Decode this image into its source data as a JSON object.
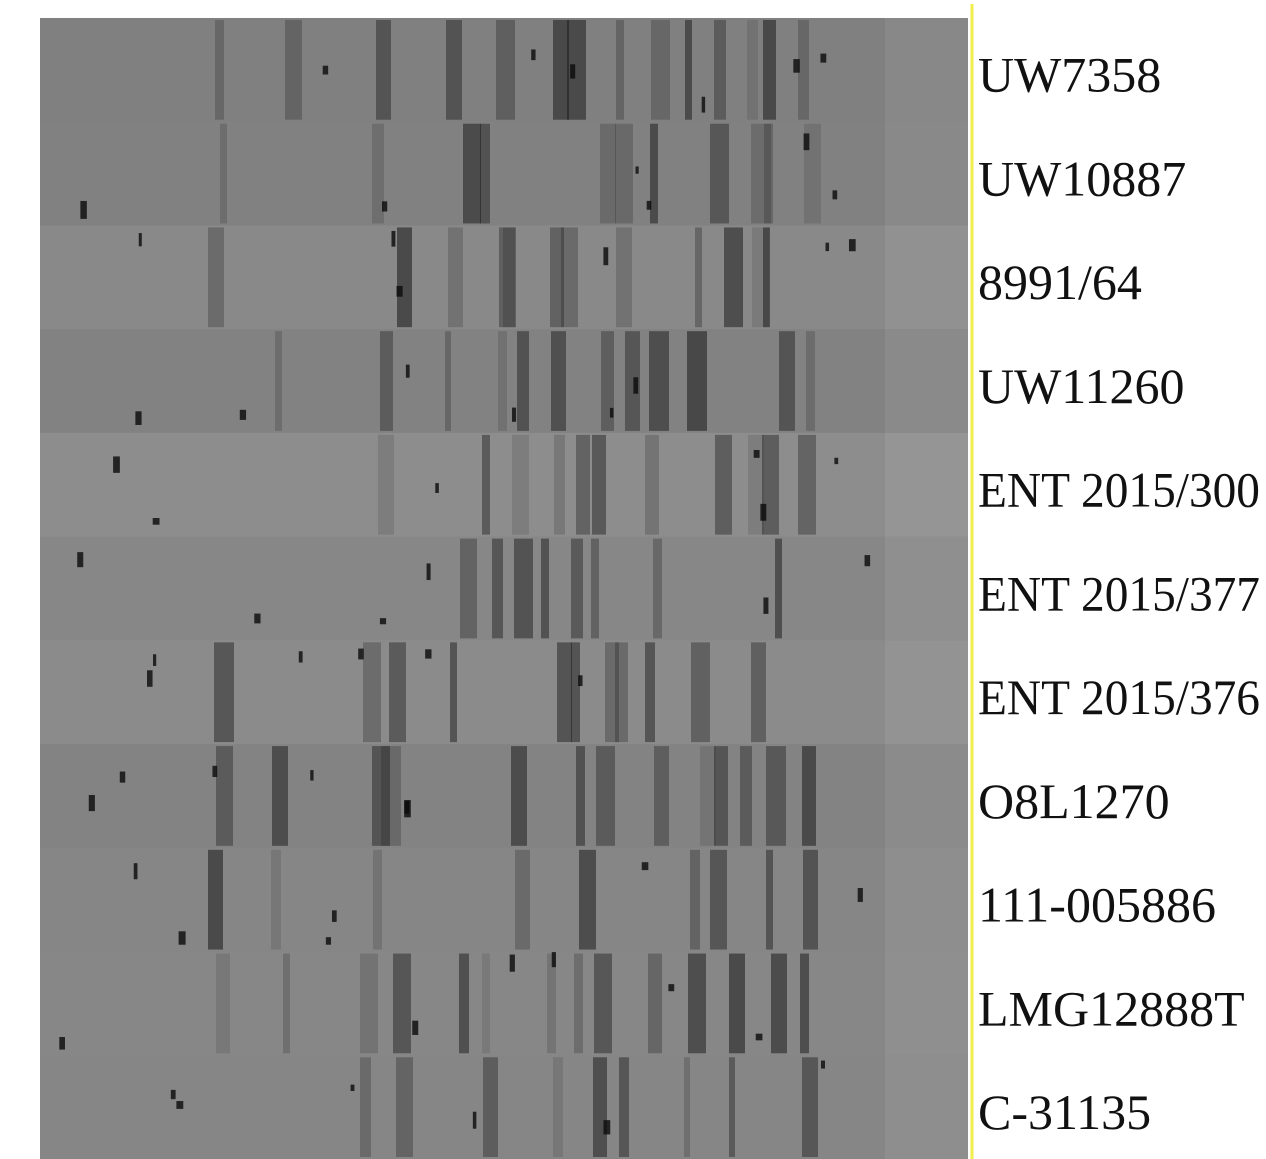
{
  "lanes": [
    {
      "label": "UW7358"
    },
    {
      "label": "UW10887"
    },
    {
      "label": "8991/64"
    },
    {
      "label": "UW11260"
    },
    {
      "label": "ENT 2015/300"
    },
    {
      "label": "ENT 2015/377"
    },
    {
      "label": "ENT 2015/376"
    },
    {
      "label": "O8L1270"
    },
    {
      "label": "111-005886"
    },
    {
      "label": "LMG12888T"
    },
    {
      "label": "C-31135"
    }
  ]
}
